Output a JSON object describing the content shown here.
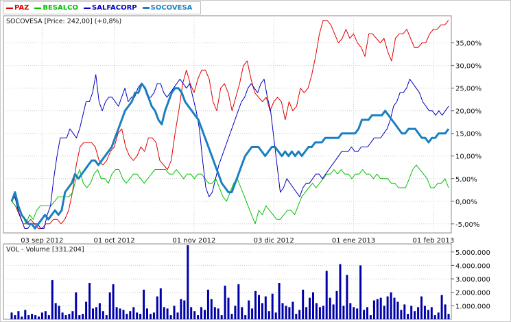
{
  "legend": {
    "items": [
      {
        "label": "PAZ",
        "color": "#e00000"
      },
      {
        "label": "BESALCO",
        "color": "#00c000"
      },
      {
        "label": "SALFACORP",
        "color": "#0000c0"
      },
      {
        "label": "SOCOVESA",
        "color": "#1a7fc0"
      }
    ]
  },
  "price_panel": {
    "title": "SOCOVESA [Price: 242,00] (+0,8%)"
  },
  "volume_panel": {
    "title": "VOL - Volume [331.204]"
  },
  "colors": {
    "grid": "#cccccc",
    "paz": "#e00000",
    "besalco": "#00c000",
    "salfacorp": "#0000c0",
    "socovesa": "#1a7fc0",
    "volume_bar": "#0000aa"
  },
  "chart_data": [
    {
      "type": "line",
      "xlabel": "",
      "ylabel": "",
      "x_axis": {
        "tick_labels": [
          "03 sep 2012",
          "01 oct 2012",
          "01 nov 2012",
          "03 dic 2012",
          "01 ene 2013",
          "01 feb 2013"
        ],
        "tick_index": [
          8,
          27,
          48,
          69,
          90,
          111
        ]
      },
      "y_axis": {
        "tick_values": [
          -5,
          0,
          5,
          10,
          15,
          20,
          25,
          30,
          35
        ],
        "tick_labels": [
          "-5,00%",
          "0,00%",
          "5,00%",
          "10,00%",
          "15,00%",
          "20,00%",
          "25,00%",
          "30,00%",
          "35,00%"
        ],
        "ylim": [
          -7,
          41
        ]
      },
      "grid": true,
      "legend_position": "top-left",
      "series": [
        {
          "name": "PAZ",
          "color_key": "paz",
          "width": 1,
          "values": [
            0,
            -1,
            -3,
            -5,
            -5,
            -4,
            -5,
            -6,
            -6,
            -5,
            -5,
            -4,
            -4,
            -5,
            -4,
            -2,
            2,
            8,
            12,
            13,
            13,
            13,
            12,
            9,
            8,
            9,
            11,
            12,
            15,
            16,
            12,
            10,
            9,
            10,
            12,
            11,
            14,
            14,
            13,
            9,
            8,
            7,
            9,
            15,
            20,
            26,
            29,
            26,
            24,
            27,
            29,
            29,
            27,
            22,
            20,
            25,
            26,
            24,
            20,
            23,
            26,
            30,
            31,
            27,
            24,
            23,
            22,
            23,
            20,
            22,
            23,
            22,
            18,
            22,
            20,
            21,
            25,
            24,
            25,
            28,
            32,
            37,
            40,
            40,
            39,
            37,
            35,
            36,
            38,
            36,
            37,
            35,
            34,
            32,
            37,
            37,
            36,
            35,
            36,
            33,
            31,
            36,
            37,
            37,
            38,
            36,
            34,
            34,
            35,
            35,
            37,
            38,
            38,
            39,
            39,
            40
          ]
        },
        {
          "name": "BESALCO",
          "color_key": "besalco",
          "width": 1,
          "values": [
            0,
            -1,
            -2,
            -3,
            -5,
            -3,
            -4,
            -2,
            -1,
            -1,
            -1,
            -1,
            0,
            1,
            1,
            1,
            1,
            2,
            5,
            7,
            4,
            3,
            4,
            6,
            7,
            5,
            5,
            4,
            6,
            7,
            7,
            5,
            4,
            5,
            6,
            6,
            5,
            4,
            5,
            6,
            7,
            7,
            7,
            7,
            6,
            6,
            7,
            6,
            5,
            6,
            6,
            5,
            6,
            6,
            5,
            4,
            4,
            5,
            3,
            1,
            0,
            2,
            4,
            5,
            3,
            1,
            -1,
            -3,
            -5,
            -2,
            -3,
            -1,
            -2,
            -3,
            -4,
            -4,
            -3,
            -2,
            -2,
            -3,
            -1,
            1,
            2,
            3,
            4,
            3,
            4,
            5,
            6,
            6,
            7,
            6,
            7,
            6,
            6,
            5,
            6,
            6,
            7,
            6,
            6,
            5,
            6,
            5,
            5,
            5,
            4,
            4,
            3,
            3,
            3,
            5,
            7,
            8,
            7,
            6,
            5,
            3,
            3,
            4,
            4,
            5,
            3
          ]
        },
        {
          "name": "SALFACORP",
          "color_key": "salfacorp",
          "width": 1,
          "values": [
            0,
            1,
            -2,
            -4,
            -6,
            -6,
            -5,
            -5,
            -5,
            -6,
            -6,
            -3,
            -1,
            5,
            10,
            14,
            14,
            14,
            16,
            15,
            14,
            16,
            19,
            22,
            22,
            24,
            28,
            22,
            20,
            22,
            23,
            23,
            22,
            21,
            23,
            25,
            22,
            23,
            23,
            25,
            26,
            25,
            23,
            23,
            24,
            26,
            26,
            24,
            23,
            24,
            25,
            26,
            27,
            26,
            25,
            26,
            23,
            20,
            16,
            9,
            3,
            1,
            2,
            5,
            8,
            10,
            12,
            14,
            16,
            18,
            20,
            22,
            23,
            25,
            26,
            25,
            24,
            26,
            27,
            23,
            20,
            14,
            8,
            2,
            3,
            5,
            4,
            3,
            2,
            1,
            3,
            4,
            4,
            5,
            6,
            6,
            5,
            6,
            7,
            8,
            9,
            10,
            11,
            11,
            11,
            12,
            11,
            11,
            12,
            12,
            12,
            13,
            14,
            14,
            14,
            15,
            16,
            18,
            21,
            22,
            24,
            24,
            25,
            27,
            26,
            25,
            24,
            22,
            21,
            20,
            20,
            19,
            20,
            19,
            20,
            21
          ]
        },
        {
          "name": "SOCOVESA",
          "color_key": "socovesa",
          "width": 3,
          "values": [
            0,
            2,
            -1,
            -3,
            -4,
            -5,
            -5,
            -6,
            -5,
            -4,
            -3,
            -4,
            -3,
            -2,
            -3,
            -2,
            2,
            3,
            4,
            6,
            5,
            6,
            7,
            8,
            9,
            9,
            8,
            9,
            10,
            11,
            12,
            14,
            16,
            18,
            20,
            21,
            22,
            24,
            24,
            26,
            25,
            23,
            21,
            20,
            18,
            17,
            20,
            22,
            24,
            25,
            25,
            24,
            22,
            21,
            20,
            19,
            18,
            16,
            14,
            12,
            10,
            8,
            6,
            4,
            3,
            2,
            2,
            4,
            6,
            8,
            10,
            11,
            12,
            12,
            12,
            11,
            10,
            11,
            12,
            12,
            11,
            10,
            11,
            10,
            11,
            10,
            11,
            10,
            11,
            12,
            12,
            13,
            13,
            13,
            14,
            14,
            14,
            14,
            14,
            15,
            15,
            15,
            15,
            15,
            16,
            18,
            18,
            18,
            19,
            19,
            19,
            19,
            20,
            19,
            18,
            17,
            16,
            15,
            15,
            16,
            16,
            16,
            15,
            14,
            14,
            13,
            14,
            14,
            15,
            15,
            15,
            16
          ]
        }
      ]
    },
    {
      "type": "bar",
      "xlabel": "",
      "ylabel": "",
      "y_axis": {
        "tick_values": [
          1000000,
          2000000,
          3000000,
          4000000,
          5000000
        ],
        "tick_labels": [
          "1.000.000",
          "2.000.000",
          "3.000.000",
          "4.000.000",
          "5.000.000"
        ],
        "ylim": [
          0,
          5600000
        ]
      },
      "grid": true,
      "series": [
        {
          "name": "VOL",
          "values": [
            500000,
            300000,
            600000,
            200000,
            700000,
            300000,
            400000,
            300000,
            200000,
            500000,
            600000,
            300000,
            2900000,
            1200000,
            1000000,
            500000,
            300000,
            400000,
            600000,
            2000000,
            300000,
            400000,
            1300000,
            2700000,
            800000,
            900000,
            1200000,
            600000,
            300000,
            2000000,
            2600000,
            900000,
            800000,
            700000,
            400000,
            600000,
            900000,
            500000,
            400000,
            2200000,
            800000,
            400000,
            500000,
            1700000,
            2300000,
            900000,
            800000,
            300000,
            1000000,
            500000,
            1500000,
            1400000,
            5500000,
            900000,
            600000,
            300000,
            900000,
            700000,
            2200000,
            1500000,
            900000,
            800000,
            300000,
            2500000,
            1600000,
            400000,
            1000000,
            2600000,
            900000,
            300000,
            1400000,
            800000,
            2100000,
            1800000,
            1200000,
            1700000,
            600000,
            1900000,
            500000,
            2700000,
            1200000,
            1000000,
            900000,
            1300000,
            400000,
            700000,
            2200000,
            900000,
            1600000,
            2000000,
            1200000,
            900000,
            1000000,
            3600000,
            1600000,
            1100000,
            2100000,
            4100000,
            1000000,
            3300000,
            1200000,
            900000,
            800000,
            4000000,
            700000,
            900000,
            300000,
            1400000,
            1500000,
            1600000,
            1000000,
            1700000,
            2000000,
            1600000,
            1300000,
            700000,
            1100000,
            400000,
            1000000,
            600000,
            900000,
            1700000,
            1000000,
            700000,
            900000,
            300000,
            500000,
            1800000,
            1100000,
            400000
          ]
        }
      ]
    }
  ]
}
